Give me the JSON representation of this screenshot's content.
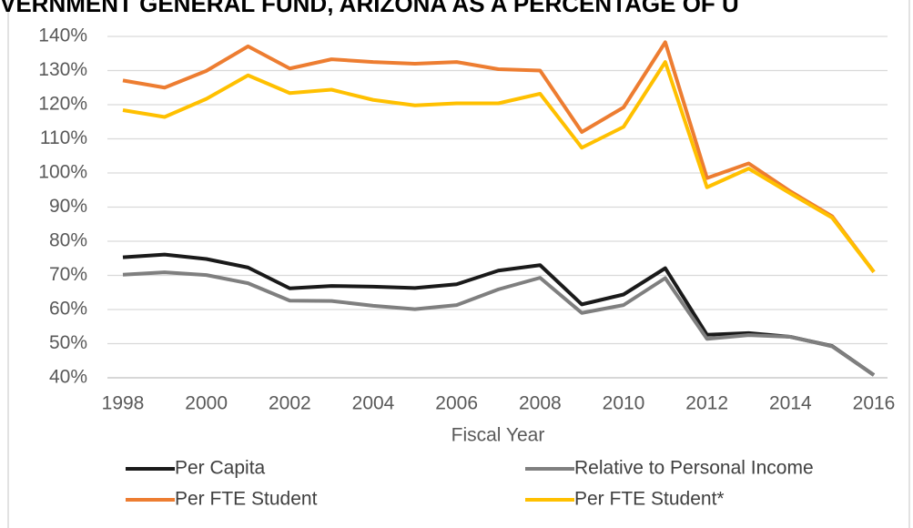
{
  "chart_data": {
    "type": "line",
    "title": "VERNMENT GENERAL FUND, ARIZONA AS A PERCENTAGE OF U",
    "x_label": "Fiscal Year",
    "x": [
      1998,
      1999,
      2000,
      2001,
      2002,
      2003,
      2004,
      2005,
      2006,
      2007,
      2008,
      2009,
      2010,
      2011,
      2012,
      2013,
      2014,
      2015,
      2016
    ],
    "xlim": [
      1998,
      2016
    ],
    "xticks": [
      1998,
      2000,
      2002,
      2004,
      2006,
      2008,
      2010,
      2012,
      2014,
      2016
    ],
    "ylim": [
      40,
      140
    ],
    "yticks": [
      {
        "value": 40,
        "label": "40%"
      },
      {
        "value": 50,
        "label": "50%"
      },
      {
        "value": 60,
        "label": "60%"
      },
      {
        "value": 70,
        "label": "70%"
      },
      {
        "value": 80,
        "label": "80%"
      },
      {
        "value": 90,
        "label": "90%"
      },
      {
        "value": 100,
        "label": "100%"
      },
      {
        "value": 110,
        "label": "110%"
      },
      {
        "value": 120,
        "label": "120%"
      },
      {
        "value": 130,
        "label": "130%"
      },
      {
        "value": 140,
        "label": "140%"
      }
    ],
    "grid": true,
    "legend": "bottom",
    "series": [
      {
        "name": "Per Capita",
        "color": "#1a1a1a",
        "values": [
          75.3,
          76.1,
          74.8,
          72.3,
          66.2,
          66.9,
          66.7,
          66.3,
          67.4,
          71.4,
          73.0,
          61.5,
          64.4,
          72.1,
          52.6,
          53.1,
          52.0,
          49.3,
          40.8
        ]
      },
      {
        "name": "Relative to Personal Income",
        "color": "#7f7f7f",
        "values": [
          70.2,
          70.9,
          70.1,
          67.7,
          62.6,
          62.5,
          61.1,
          60.1,
          61.3,
          65.9,
          69.3,
          59.0,
          61.3,
          69.2,
          51.4,
          52.5,
          52.0,
          49.2,
          40.8
        ]
      },
      {
        "name": "Per FTE Student",
        "color": "#ed7d31",
        "values": [
          127.1,
          125.0,
          129.9,
          137.1,
          130.6,
          133.3,
          132.5,
          132.0,
          132.5,
          130.4,
          130.0,
          112.0,
          119.2,
          138.3,
          98.5,
          102.8,
          94.6,
          87.3,
          71.0
        ]
      },
      {
        "name": "Per FTE Student*",
        "color": "#ffc000",
        "values": [
          118.4,
          116.4,
          121.7,
          128.6,
          123.4,
          124.4,
          121.4,
          119.8,
          120.4,
          120.4,
          123.2,
          107.4,
          113.5,
          132.5,
          95.8,
          101.3,
          94.0,
          86.9,
          71.0
        ]
      }
    ]
  }
}
